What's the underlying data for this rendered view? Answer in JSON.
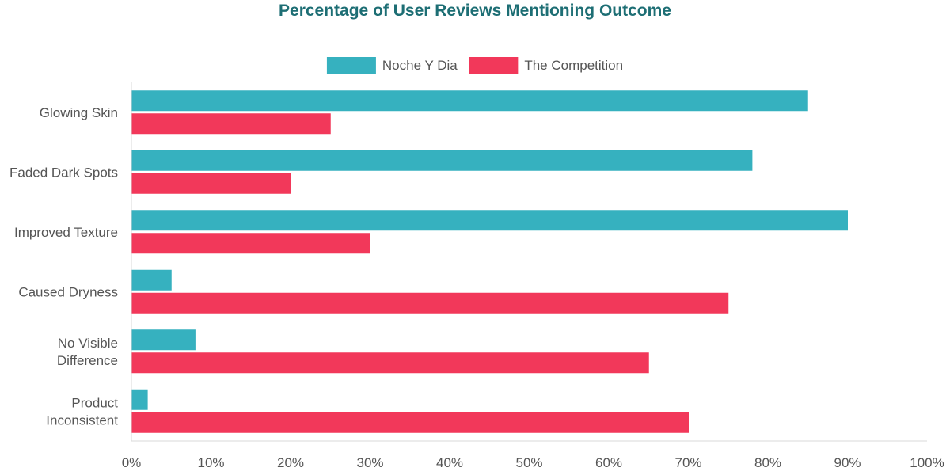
{
  "chart_data": {
    "type": "bar",
    "orientation": "horizontal",
    "title": "Percentage of User Reviews Mentioning Outcome",
    "categories": [
      [
        "Glowing Skin"
      ],
      [
        "Faded Dark Spots"
      ],
      [
        "Improved Texture"
      ],
      [
        "Caused Dryness"
      ],
      [
        "No Visible",
        "Difference"
      ],
      [
        "Product",
        "Inconsistent"
      ]
    ],
    "series": [
      {
        "name": "Noche Y Dia",
        "color": "#36B1BF",
        "values": [
          85,
          78,
          90,
          5,
          8,
          2
        ]
      },
      {
        "name": "The Competition",
        "color": "#F2385A",
        "values": [
          25,
          20,
          30,
          75,
          65,
          70
        ]
      }
    ],
    "xlim": [
      0,
      100
    ],
    "xticks": [
      0,
      10,
      20,
      30,
      40,
      50,
      60,
      70,
      80,
      90,
      100
    ],
    "tick_suffix": "%",
    "grid": false,
    "legend_position": "top-center"
  },
  "colors": {
    "title": "#1D6E74",
    "axis": "#D9D9D9",
    "text": "#555555"
  }
}
